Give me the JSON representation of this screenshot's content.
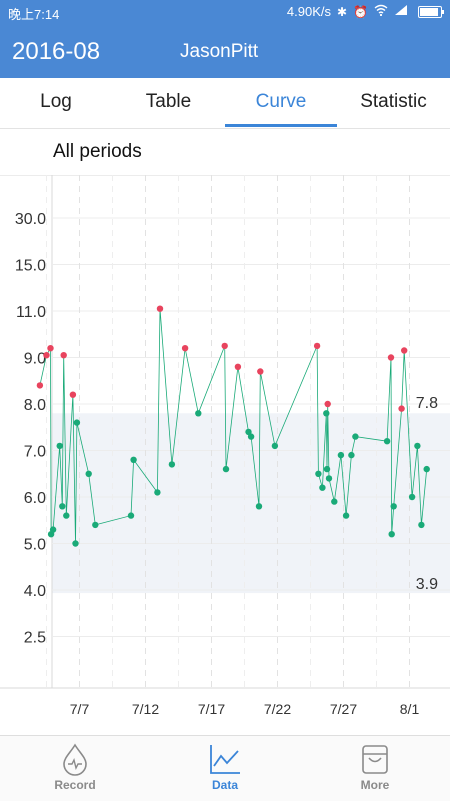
{
  "status_bar": {
    "time": "晚上7:14",
    "network_speed": "4.90K/s",
    "icons": [
      "bluetooth-icon",
      "alarm-icon",
      "wifi-icon",
      "signal-icon",
      "battery-icon"
    ]
  },
  "header": {
    "period": "2016-08",
    "user": "JasonPitt"
  },
  "tabs": [
    {
      "label": "Log",
      "active": false
    },
    {
      "label": "Table",
      "active": false
    },
    {
      "label": "Curve",
      "active": true
    },
    {
      "label": "Statistic",
      "active": false
    }
  ],
  "filter": {
    "label": "All periods"
  },
  "colors": {
    "primary": "#4a88d4",
    "accent": "#3b85d8",
    "normal_point": "#1aaa78",
    "high_point": "#e8445e",
    "target_band": "#f0f3f8"
  },
  "chart_data": {
    "type": "line",
    "y_ticks": [
      "2.5",
      "4.0",
      "5.0",
      "6.0",
      "7.0",
      "8.0",
      "9.0",
      "11.0",
      "15.0",
      "30.0"
    ],
    "x_ticks": [
      "7/7",
      "7/12",
      "7/17",
      "7/22",
      "7/27",
      "8/1"
    ],
    "target_range": {
      "low": 3.9,
      "high": 7.8,
      "low_label": "3.9",
      "high_label": "7.8"
    },
    "points": [
      {
        "x": 4.0,
        "y": 8.4
      },
      {
        "x": 4.5,
        "y": 9.1
      },
      {
        "x": 4.8,
        "y": 9.4
      },
      {
        "x": 4.85,
        "y": 5.2
      },
      {
        "x": 5.0,
        "y": 5.3
      },
      {
        "x": 5.5,
        "y": 7.1
      },
      {
        "x": 5.7,
        "y": 5.8
      },
      {
        "x": 5.8,
        "y": 9.1
      },
      {
        "x": 6.0,
        "y": 5.6
      },
      {
        "x": 6.5,
        "y": 8.2
      },
      {
        "x": 6.7,
        "y": 5.0
      },
      {
        "x": 6.8,
        "y": 7.6
      },
      {
        "x": 7.7,
        "y": 6.5
      },
      {
        "x": 8.2,
        "y": 5.4
      },
      {
        "x": 10.9,
        "y": 5.6
      },
      {
        "x": 11.1,
        "y": 6.8
      },
      {
        "x": 12.9,
        "y": 6.1
      },
      {
        "x": 13.1,
        "y": 11.2
      },
      {
        "x": 14.0,
        "y": 6.7
      },
      {
        "x": 15.0,
        "y": 9.4
      },
      {
        "x": 16.0,
        "y": 7.8
      },
      {
        "x": 18.0,
        "y": 9.5
      },
      {
        "x": 18.1,
        "y": 6.6
      },
      {
        "x": 19.0,
        "y": 8.8
      },
      {
        "x": 19.8,
        "y": 7.4
      },
      {
        "x": 20.0,
        "y": 7.3
      },
      {
        "x": 20.6,
        "y": 5.8
      },
      {
        "x": 20.7,
        "y": 8.7
      },
      {
        "x": 21.8,
        "y": 7.1
      },
      {
        "x": 25.0,
        "y": 9.5
      },
      {
        "x": 25.1,
        "y": 6.5
      },
      {
        "x": 25.4,
        "y": 6.2
      },
      {
        "x": 25.7,
        "y": 7.8
      },
      {
        "x": 25.75,
        "y": 6.6
      },
      {
        "x": 25.8,
        "y": 8.0
      },
      {
        "x": 25.9,
        "y": 6.4
      },
      {
        "x": 26.3,
        "y": 5.9
      },
      {
        "x": 26.8,
        "y": 6.9
      },
      {
        "x": 27.2,
        "y": 5.6
      },
      {
        "x": 27.6,
        "y": 6.9
      },
      {
        "x": 27.9,
        "y": 7.3
      },
      {
        "x": 30.3,
        "y": 7.2
      },
      {
        "x": 30.6,
        "y": 9.0
      },
      {
        "x": 30.65,
        "y": 5.2
      },
      {
        "x": 30.8,
        "y": 5.8
      },
      {
        "x": 31.4,
        "y": 7.9
      },
      {
        "x": 31.6,
        "y": 9.3
      },
      {
        "x": 32.2,
        "y": 6.0
      },
      {
        "x": 32.6,
        "y": 7.1
      },
      {
        "x": 32.9,
        "y": 5.4
      },
      {
        "x": 33.3,
        "y": 6.6
      }
    ]
  },
  "bottom_nav": [
    {
      "label": "Record",
      "icon": "drop-icon",
      "active": false
    },
    {
      "label": "Data",
      "icon": "chart-icon",
      "active": true
    },
    {
      "label": "More",
      "icon": "bag-icon",
      "active": false
    }
  ]
}
